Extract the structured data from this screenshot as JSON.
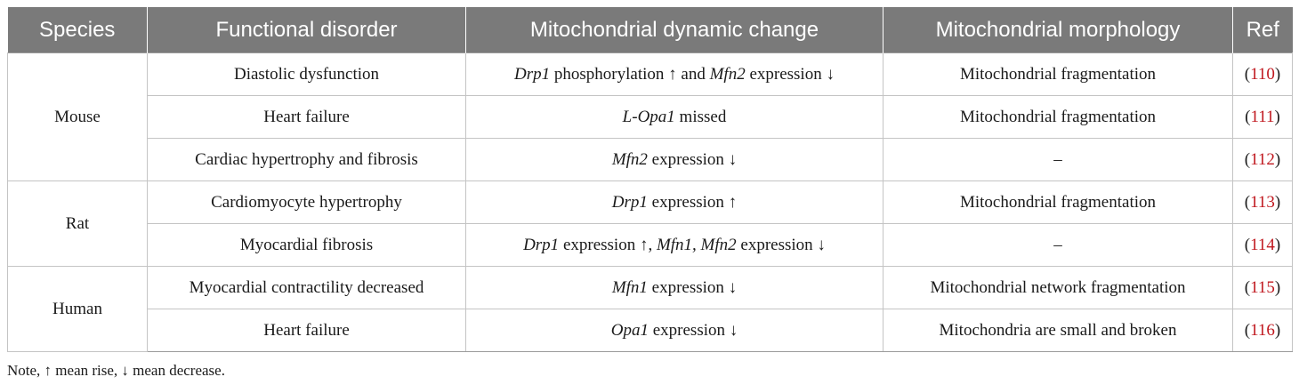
{
  "header": {
    "species": "Species",
    "disorder": "Functional disorder",
    "dynamic": "Mitochondrial dynamic change",
    "morphology": "Mitochondrial morphology",
    "ref": "Ref"
  },
  "groups": [
    {
      "species": "Mouse",
      "rows": [
        {
          "disorder": "Diastolic dysfunction",
          "dynamic": [
            {
              "t": "Drp1",
              "i": true
            },
            {
              "t": " phosphorylation ↑ and ",
              "i": false
            },
            {
              "t": "Mfn2",
              "i": true
            },
            {
              "t": " expression ↓",
              "i": false
            }
          ],
          "morphology": "Mitochondrial fragmentation",
          "ref": "110"
        },
        {
          "disorder": "Heart failure",
          "dynamic": [
            {
              "t": "L-Opa1",
              "i": true
            },
            {
              "t": " missed",
              "i": false
            }
          ],
          "morphology": "Mitochondrial fragmentation",
          "ref": "111"
        },
        {
          "disorder": "Cardiac hypertrophy and fibrosis",
          "dynamic": [
            {
              "t": "Mfn2",
              "i": true
            },
            {
              "t": " expression ↓",
              "i": false
            }
          ],
          "morphology": "–",
          "ref": "112"
        }
      ]
    },
    {
      "species": "Rat",
      "rows": [
        {
          "disorder": "Cardiomyocyte hypertrophy",
          "dynamic": [
            {
              "t": "Drp1",
              "i": true
            },
            {
              "t": " expression ↑",
              "i": false
            }
          ],
          "morphology": "Mitochondrial fragmentation",
          "ref": "113"
        },
        {
          "disorder": "Myocardial fibrosis",
          "dynamic": [
            {
              "t": "Drp1",
              "i": true
            },
            {
              "t": " expression ↑, ",
              "i": false
            },
            {
              "t": "Mfn1, Mfn2",
              "i": true
            },
            {
              "t": " expression ↓",
              "i": false
            }
          ],
          "morphology": "–",
          "ref": "114"
        }
      ]
    },
    {
      "species": "Human",
      "rows": [
        {
          "disorder": "Myocardial contractility decreased",
          "dynamic": [
            {
              "t": "Mfn1",
              "i": true
            },
            {
              "t": " expression ↓",
              "i": false
            }
          ],
          "morphology": "Mitochondrial network fragmentation",
          "ref": "115"
        },
        {
          "disorder": "Heart failure",
          "dynamic": [
            {
              "t": "Opa1",
              "i": true
            },
            {
              "t": " expression ↓",
              "i": false
            }
          ],
          "morphology": "Mitochondria are small and broken",
          "ref": "116"
        }
      ]
    }
  ],
  "note": "Note, ↑ mean rise, ↓ mean decrease.",
  "colors": {
    "header_bg": "#7a7a7a",
    "header_text": "#ffffff",
    "ref_link": "#c0181f"
  }
}
